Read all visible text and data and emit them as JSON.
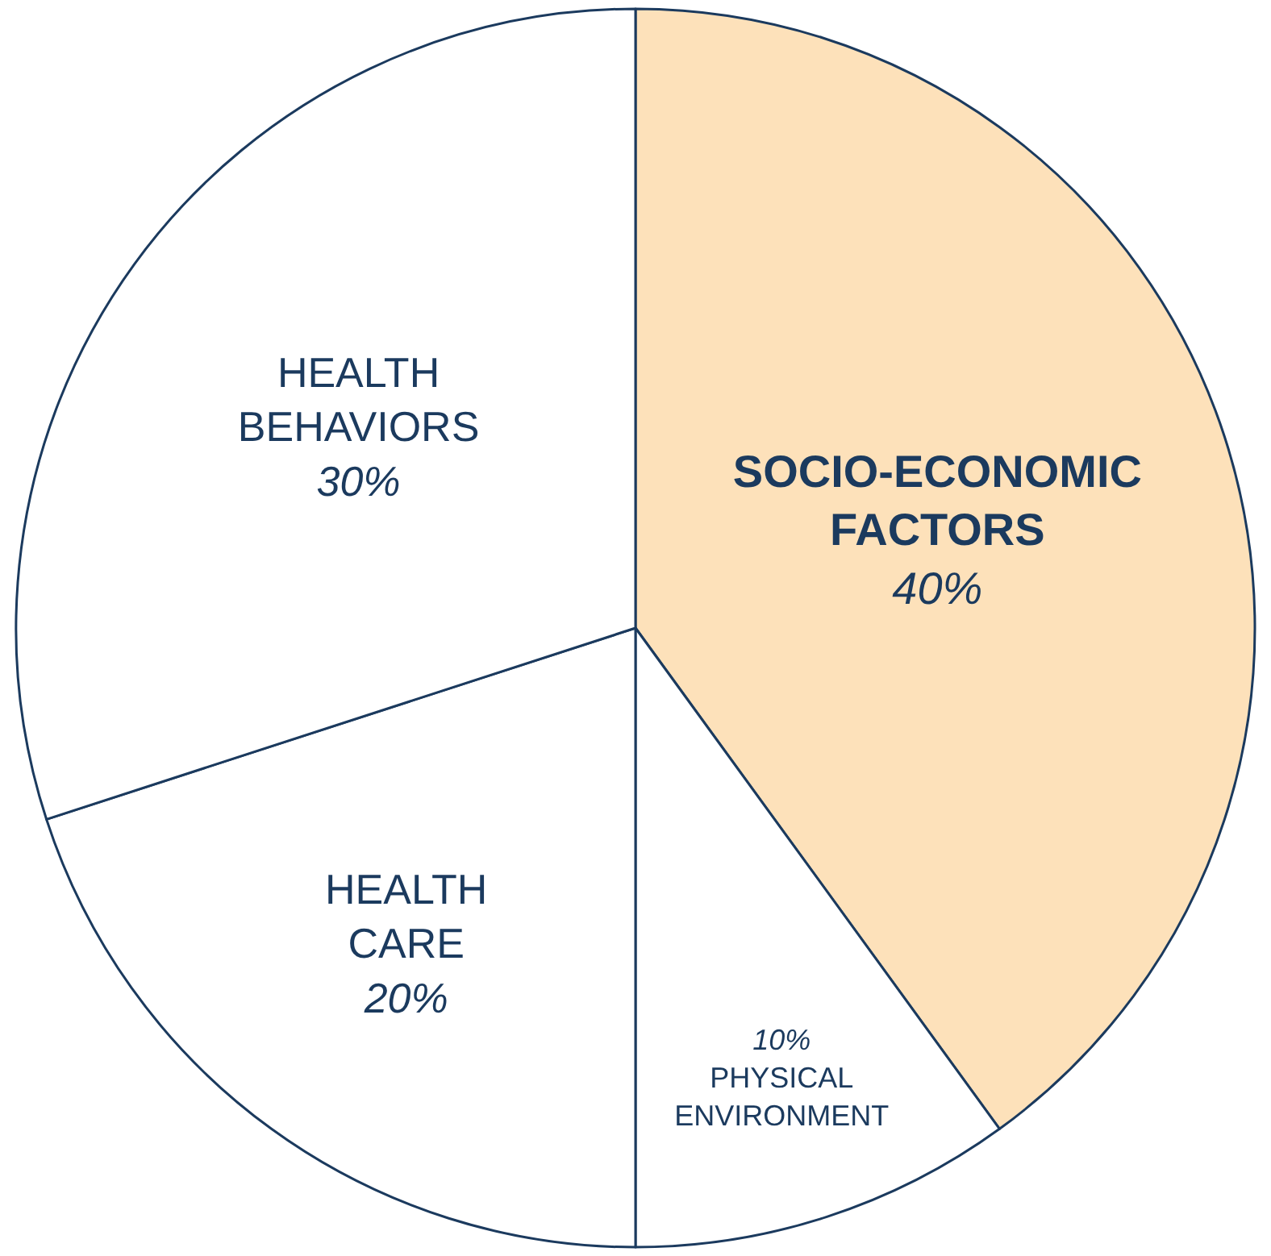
{
  "chart_data": {
    "type": "pie",
    "categories": [
      "SOCIO-ECONOMIC FACTORS",
      "PHYSICAL ENVIRONMENT",
      "HEALTH CARE",
      "HEALTH BEHAVIORS"
    ],
    "values": [
      40,
      10,
      20,
      30
    ],
    "value_labels": [
      "40%",
      "10%",
      "20%",
      "30%"
    ],
    "colors": [
      "#fde1ba",
      "#ffffff",
      "#ffffff",
      "#ffffff"
    ],
    "legend": false
  }
}
